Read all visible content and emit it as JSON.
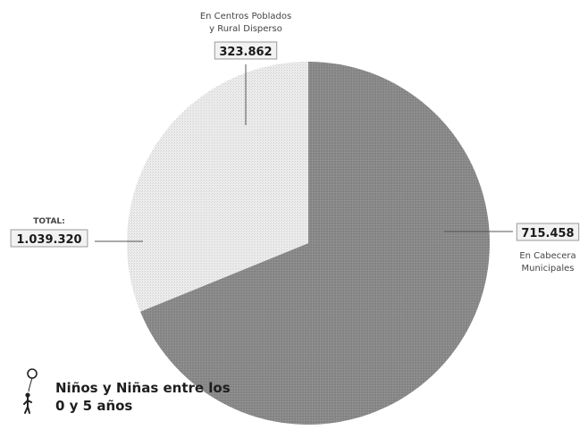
{
  "chart_data": {
    "type": "pie",
    "slices": [
      {
        "label_lines": [
          "En Cabecera",
          "Municipales"
        ],
        "value": 715458,
        "value_label": "715.458",
        "color": "#8a8a8a"
      },
      {
        "label_lines": [
          "En Centros Poblados",
          "y Rural Disperso"
        ],
        "value": 323862,
        "value_label": "323.862",
        "color": "#ececec"
      }
    ],
    "total": {
      "label": "TOTAL:",
      "value": 1039320,
      "value_label": "1.039.320"
    },
    "caption_lines": [
      "Niños y Niñas entre los",
      "0 y 5 años"
    ],
    "caption_icon": "child-with-balloon-icon"
  }
}
